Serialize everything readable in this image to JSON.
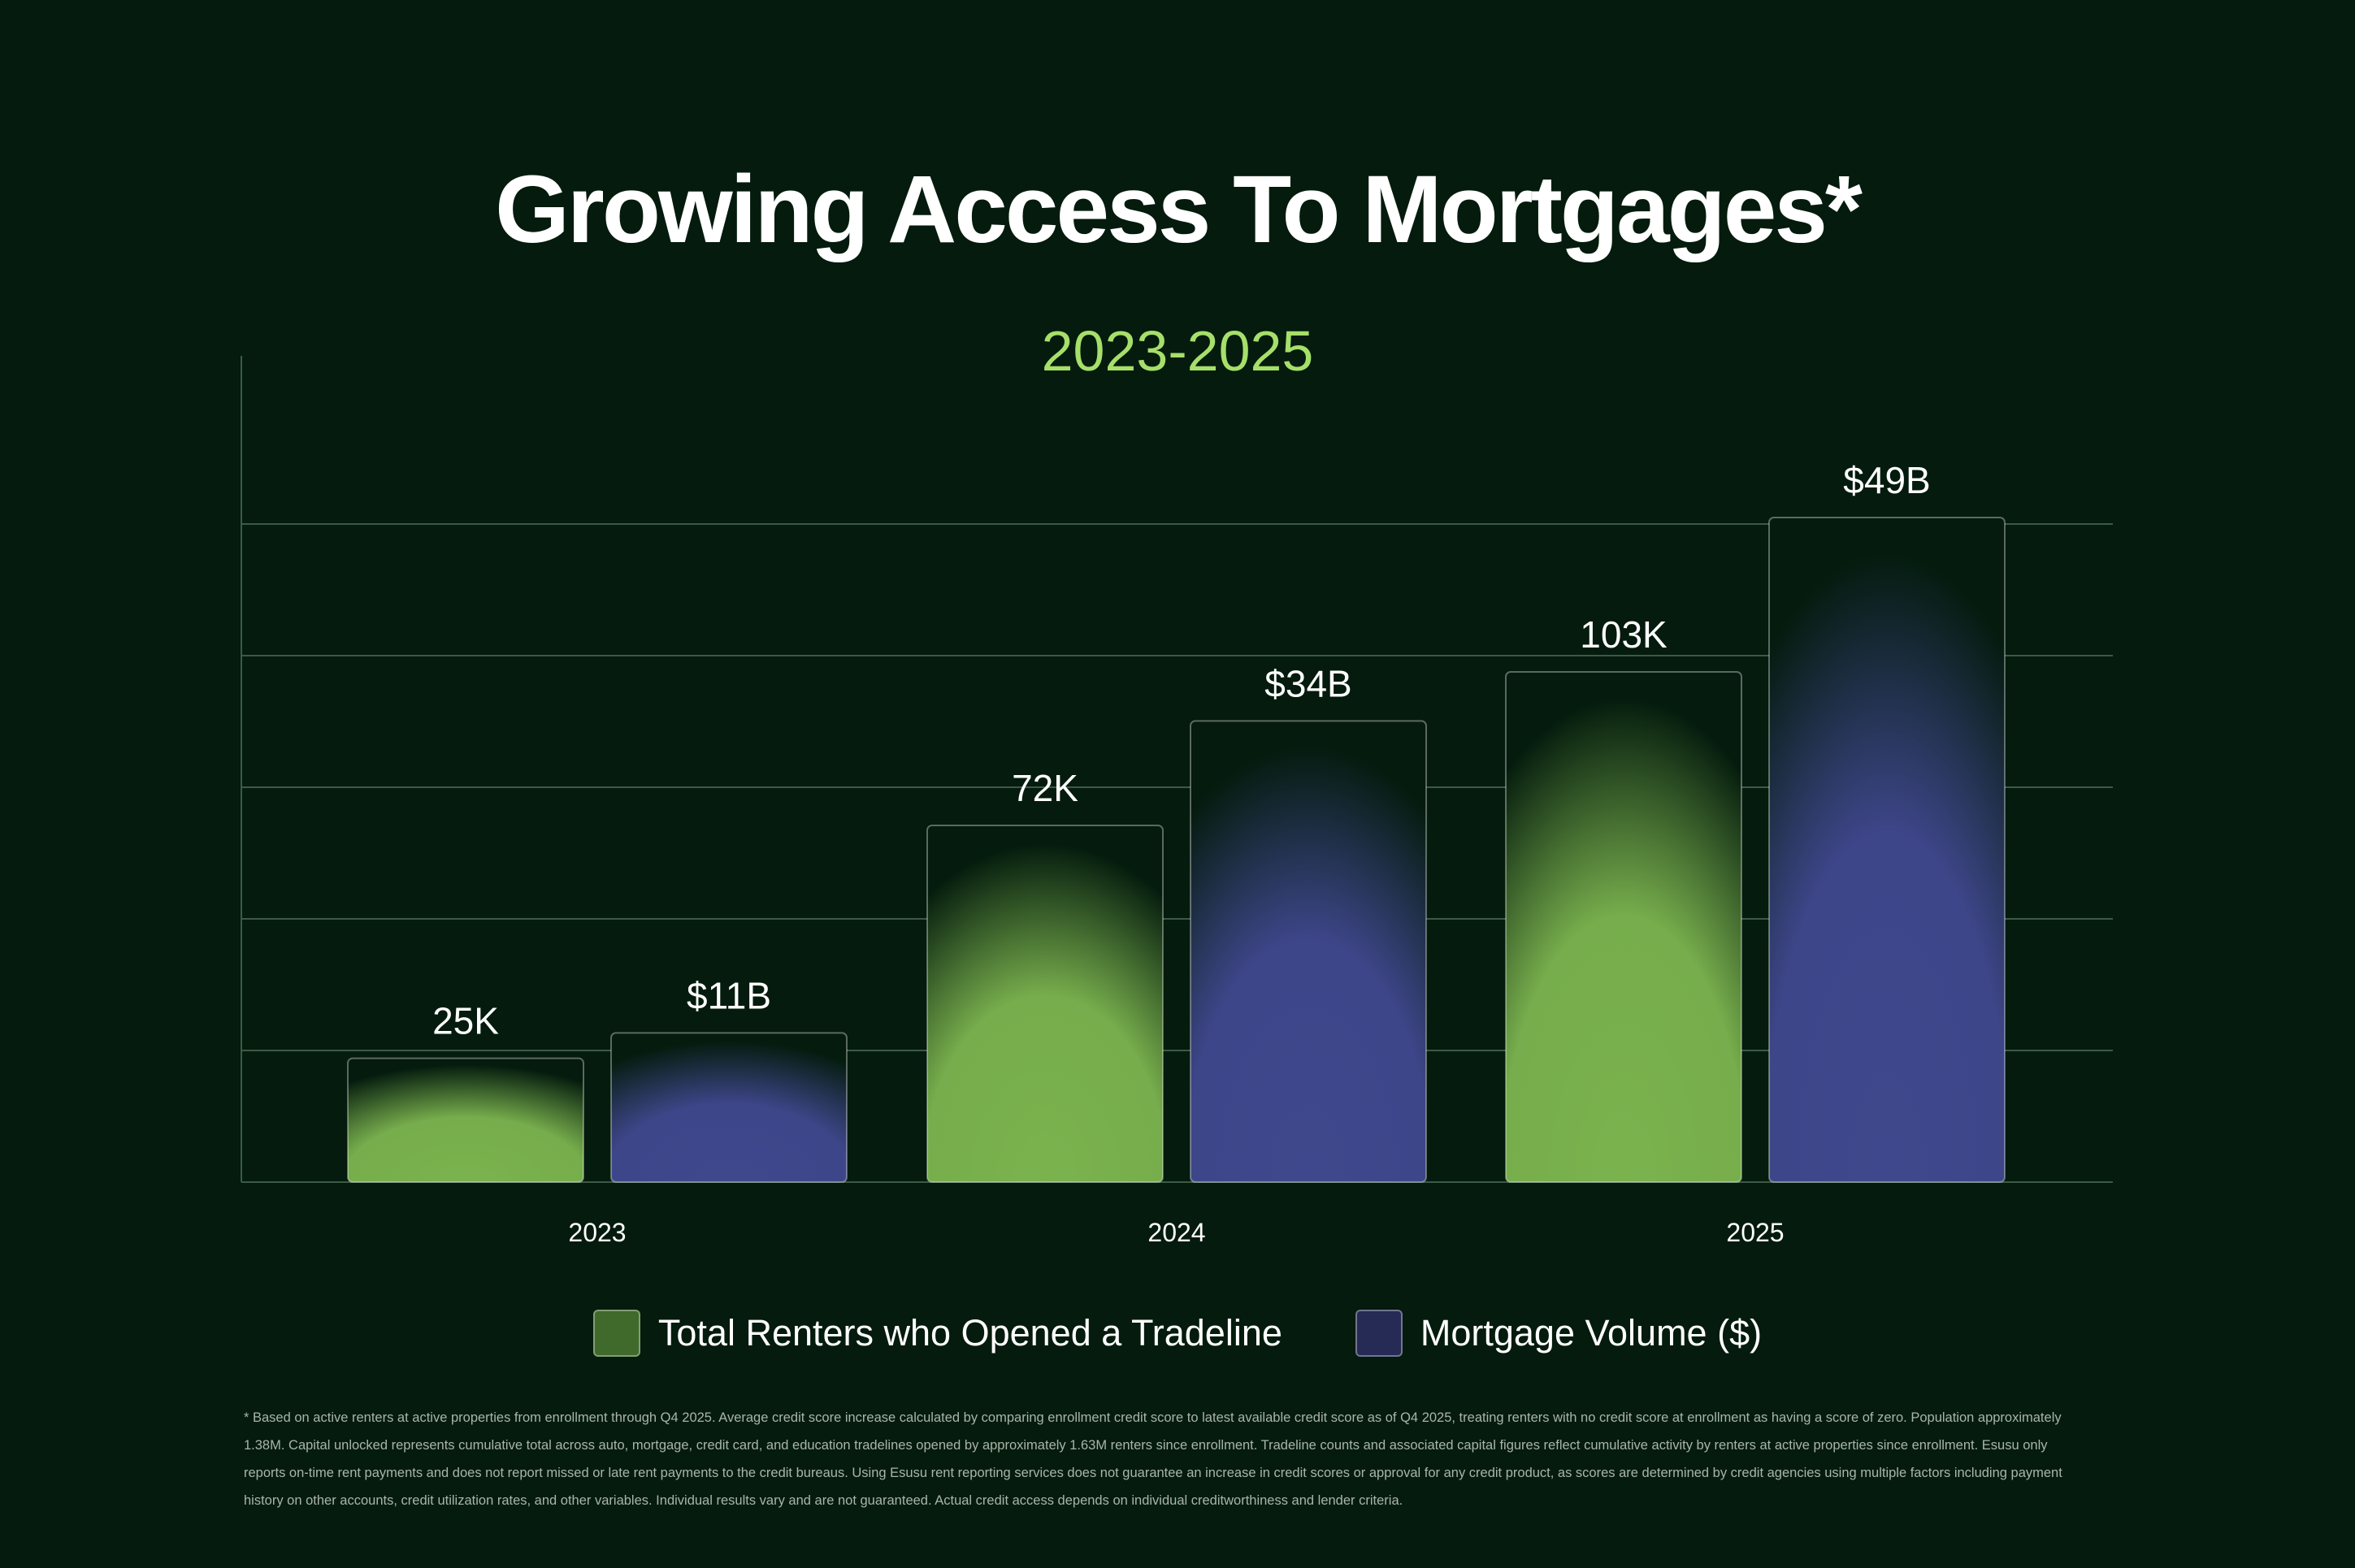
{
  "title": "Growing Access To Mortgages*",
  "subtitle": "2023-2025",
  "colors": {
    "background": "#041b0d",
    "renters": "#7ab34e",
    "mortgage": "#40488d",
    "subtitle": "#a6df6a",
    "gridline": "#3c5a45"
  },
  "chart_data": {
    "type": "bar",
    "title": "Growing Access To Mortgages*",
    "subtitle": "2023-2025",
    "categories": [
      "2023",
      "2024",
      "2025"
    ],
    "series": [
      {
        "name": "Total Renters who Opened a Tradeline",
        "values": [
          25000,
          72000,
          103000
        ],
        "labels": [
          "25K",
          "72K",
          "103K"
        ],
        "color": "#7ab34e"
      },
      {
        "name": "Mortgage Volume ($)",
        "values": [
          11,
          34,
          49
        ],
        "labels": [
          "$11B",
          "$34B",
          "$49B"
        ],
        "color": "#40488d"
      }
    ],
    "xlabel": "",
    "ylabel": "",
    "grid": true,
    "legend": "bottom-center"
  },
  "legend": {
    "items": [
      {
        "label": "Total Renters who Opened a Tradeline",
        "color": "#7ab34e"
      },
      {
        "label": "Mortgage Volume ($)",
        "color": "#40488d"
      }
    ]
  },
  "footnote": "* Based on active renters at active properties from enrollment through Q4 2025. Average credit score increase calculated by comparing enrollment credit score to latest available credit score as of Q4 2025, treating renters with no credit score at enrollment as having a score of zero. Population approximately 1.38M. Capital unlocked represents cumulative total across auto, mortgage, credit card, and education tradelines opened by approximately 1.63M renters since enrollment. Tradeline counts and associated capital figures reflect cumulative activity by renters at active properties since enrollment. Esusu only reports on-time rent payments and does not report missed or late rent payments to the credit bureaus. Using Esusu rent reporting services does not guarantee an increase in credit scores or approval for any credit product, as scores are determined by credit agencies using multiple factors including payment history on other accounts, credit utilization rates, and other variables. Individual results vary and are not guaranteed. Actual credit access depends on individual creditworthiness and lender criteria."
}
